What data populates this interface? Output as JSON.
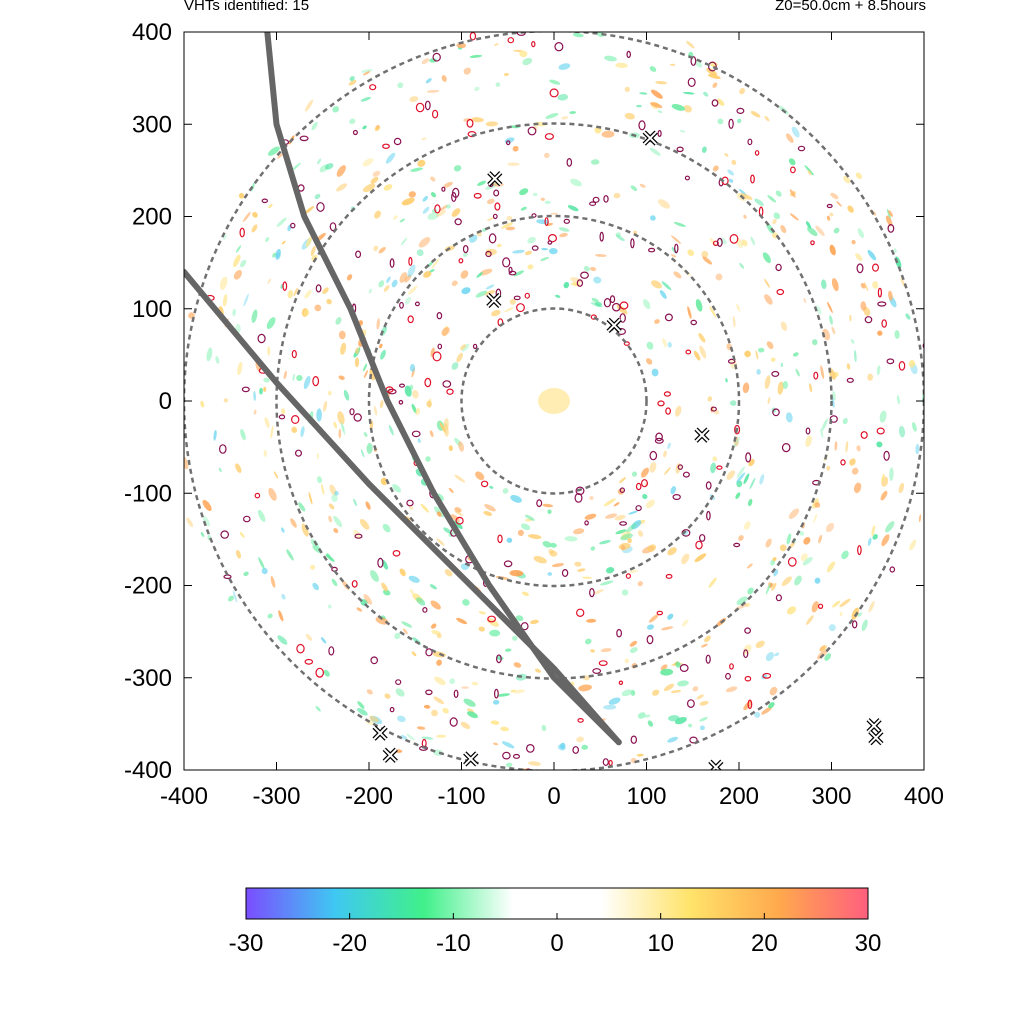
{
  "header": {
    "left": "VHTs identified: 15",
    "right": "Z0=50.0cm  + 8.5hours"
  },
  "chart_data": {
    "type": "scatter",
    "xlim": [
      -400,
      400
    ],
    "ylim": [
      -400,
      400
    ],
    "x_ticks": [
      "-400",
      "-300",
      "-200",
      "-100",
      "0",
      "100",
      "200",
      "300",
      "400"
    ],
    "y_ticks": [
      "400",
      "300",
      "200",
      "100",
      "0",
      "-100",
      "-200",
      "-300",
      "-400"
    ],
    "grid": false,
    "reference_circle_radii": [
      100,
      200,
      300,
      400
    ],
    "vht_markers": [
      {
        "x": 104,
        "y": 285
      },
      {
        "x": -64,
        "y": 241
      },
      {
        "x": -65,
        "y": 109
      },
      {
        "x": 65,
        "y": 82
      },
      {
        "x": 160,
        "y": -37
      },
      {
        "x": -188,
        "y": -360
      },
      {
        "x": -177,
        "y": -384
      },
      {
        "x": -90,
        "y": -388
      },
      {
        "x": 175,
        "y": -397
      },
      {
        "x": 346,
        "y": -352
      },
      {
        "x": 348,
        "y": -365
      }
    ],
    "tracks": [
      {
        "points": [
          [
            -310,
            400
          ],
          [
            -300,
            300
          ],
          [
            -270,
            200
          ],
          [
            -220,
            100
          ],
          [
            -180,
            0
          ],
          [
            -130,
            -100
          ],
          [
            -70,
            -200
          ],
          [
            0,
            -300
          ],
          [
            70,
            -370
          ]
        ]
      },
      {
        "points": [
          [
            -400,
            140
          ],
          [
            -300,
            20
          ],
          [
            -200,
            -90
          ],
          [
            -100,
            -190
          ],
          [
            0,
            -290
          ],
          [
            70,
            -370
          ]
        ]
      }
    ],
    "colorbar": {
      "ticks": [
        "-30",
        "-20",
        "-10",
        "0",
        "10",
        "20",
        "30"
      ],
      "range": [
        -30,
        30
      ],
      "colors": [
        "#7b4dff",
        "#3fc8f2",
        "#40f08a",
        "#ffffff",
        "#ffffff",
        "#ffe36a",
        "#ffa94d",
        "#ff5f7e"
      ]
    }
  }
}
